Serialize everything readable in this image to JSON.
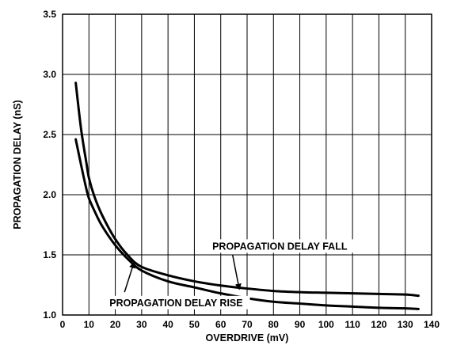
{
  "chart_data": {
    "type": "line",
    "title": "",
    "xlabel": "OVERDRIVE (mV)",
    "ylabel": "PROPAGATION DELAY (nS)",
    "xlim": [
      0,
      140
    ],
    "ylim": [
      1.0,
      3.5
    ],
    "x_ticks": [
      "0",
      "10",
      "20",
      "30",
      "40",
      "50",
      "60",
      "70",
      "80",
      "90",
      "100",
      "110",
      "120",
      "130",
      "140"
    ],
    "y_ticks": [
      "1.0",
      "1.5",
      "2.0",
      "2.5",
      "3.0",
      "3.5"
    ],
    "grid": true,
    "legend": "none",
    "series": [
      {
        "name": "PROPAGATION DELAY FALL",
        "x": [
          5,
          7,
          9,
          10,
          12,
          15,
          20,
          25,
          30,
          40,
          50,
          60,
          70,
          80,
          90,
          100,
          110,
          120,
          130,
          135
        ],
        "y": [
          2.93,
          2.55,
          2.27,
          2.14,
          1.99,
          1.83,
          1.63,
          1.49,
          1.4,
          1.33,
          1.28,
          1.245,
          1.22,
          1.2,
          1.19,
          1.185,
          1.18,
          1.175,
          1.17,
          1.16
        ]
      },
      {
        "name": "PROPAGATION DELAY RISE",
        "x": [
          5,
          7,
          9,
          10,
          12,
          15,
          20,
          25,
          30,
          40,
          50,
          60,
          70,
          80,
          90,
          100,
          110,
          120,
          130,
          135
        ],
        "y": [
          2.46,
          2.25,
          2.05,
          1.97,
          1.87,
          1.74,
          1.58,
          1.46,
          1.37,
          1.28,
          1.23,
          1.18,
          1.14,
          1.11,
          1.095,
          1.08,
          1.07,
          1.06,
          1.055,
          1.05
        ]
      }
    ],
    "annotations": [
      {
        "text": "PROPAGATION DELAY FALL",
        "target_series": 0,
        "arrow_to": [
          67,
          1.22
        ]
      },
      {
        "text": "PROPAGATION DELAY RISE",
        "target_series": 1,
        "arrow_to": [
          27,
          1.43
        ]
      }
    ]
  }
}
